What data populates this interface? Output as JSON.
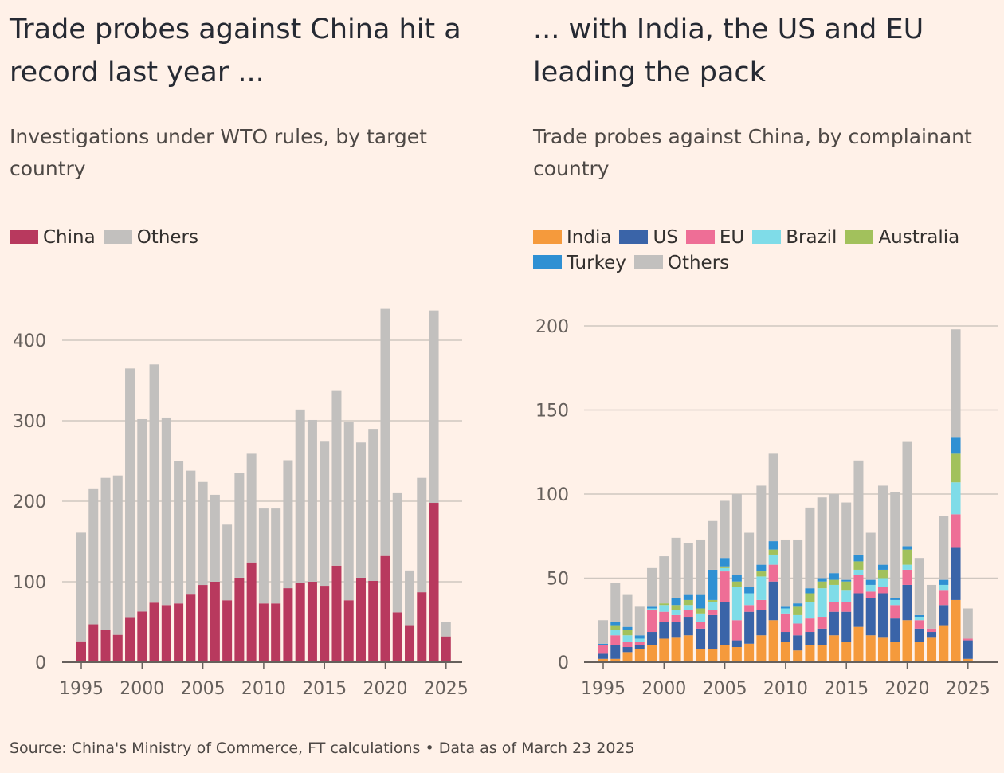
{
  "source": "Source: China's Ministry of Commerce, FT calculations • Data as of March 23 2025",
  "colors": {
    "China": "#B8395E",
    "Others": "#C2C0BE",
    "India": "#F59A3C",
    "US": "#3A64A8",
    "EU": "#EE6E96",
    "Brazil": "#7FDCE8",
    "Australia": "#A2C15C",
    "Turkey": "#2F90D3",
    "gridline": "#CFC7C0",
    "axis": "#66605C"
  },
  "chart_data": [
    {
      "type": "bar",
      "stacked": true,
      "title": "Trade probes against China hit a record last year ...",
      "subtitle": "Investigations under WTO rules, by target country",
      "xlabel": "",
      "ylabel": "",
      "ylim": [
        0,
        400
      ],
      "yticks": [
        0,
        100,
        200,
        300,
        400
      ],
      "xticks": [
        1995,
        2000,
        2005,
        2010,
        2015,
        2020,
        2025
      ],
      "x": [
        1995,
        1996,
        1997,
        1998,
        1999,
        2000,
        2001,
        2002,
        2003,
        2004,
        2005,
        2006,
        2007,
        2008,
        2009,
        2010,
        2011,
        2012,
        2013,
        2014,
        2015,
        2016,
        2017,
        2018,
        2019,
        2020,
        2021,
        2022,
        2023,
        2024,
        2025
      ],
      "legend": "top-left",
      "grid": true,
      "series": [
        {
          "name": "China",
          "values": [
            26,
            47,
            40,
            34,
            56,
            63,
            74,
            71,
            73,
            84,
            96,
            100,
            77,
            105,
            124,
            73,
            73,
            92,
            99,
            100,
            95,
            120,
            77,
            105,
            101,
            132,
            62,
            46,
            87,
            198,
            32
          ]
        },
        {
          "name": "Others",
          "values": [
            135,
            169,
            189,
            198,
            309,
            239,
            296,
            233,
            177,
            154,
            128,
            108,
            94,
            130,
            135,
            118,
            118,
            159,
            215,
            201,
            179,
            217,
            221,
            168,
            189,
            307,
            148,
            68,
            142,
            239,
            18
          ]
        }
      ]
    },
    {
      "type": "bar",
      "stacked": true,
      "title": "... with India, the US and EU leading the pack",
      "subtitle": "Trade probes against China, by complainant country",
      "xlabel": "",
      "ylabel": "",
      "ylim": [
        0,
        200
      ],
      "yticks": [
        0,
        50,
        100,
        150,
        200
      ],
      "xticks": [
        1995,
        2000,
        2005,
        2010,
        2015,
        2020,
        2025
      ],
      "x": [
        1995,
        1996,
        1997,
        1998,
        1999,
        2000,
        2001,
        2002,
        2003,
        2004,
        2005,
        2006,
        2007,
        2008,
        2009,
        2010,
        2011,
        2012,
        2013,
        2014,
        2015,
        2016,
        2017,
        2018,
        2019,
        2020,
        2021,
        2022,
        2023,
        2024,
        2025
      ],
      "legend": "top-left",
      "grid": true,
      "series": [
        {
          "name": "India",
          "values": [
            2,
            2,
            6,
            8,
            10,
            14,
            15,
            16,
            8,
            8,
            10,
            9,
            11,
            16,
            25,
            12,
            7,
            10,
            10,
            16,
            12,
            21,
            16,
            15,
            12,
            25,
            12,
            15,
            22,
            37,
            2
          ]
        },
        {
          "name": "US",
          "values": [
            3,
            8,
            3,
            2,
            8,
            10,
            9,
            11,
            12,
            20,
            26,
            4,
            19,
            15,
            23,
            6,
            9,
            8,
            10,
            14,
            18,
            20,
            22,
            26,
            14,
            21,
            8,
            3,
            12,
            31,
            11
          ]
        },
        {
          "name": "EU",
          "values": [
            5,
            6,
            3,
            2,
            13,
            6,
            4,
            4,
            4,
            3,
            18,
            12,
            4,
            6,
            10,
            11,
            7,
            8,
            7,
            6,
            6,
            11,
            4,
            4,
            8,
            9,
            5,
            2,
            9,
            20,
            1
          ]
        },
        {
          "name": "Brazil",
          "values": [
            0,
            3,
            4,
            2,
            1,
            4,
            3,
            3,
            5,
            5,
            2,
            20,
            7,
            14,
            6,
            3,
            5,
            10,
            17,
            10,
            7,
            3,
            4,
            5,
            3,
            3,
            2,
            0,
            3,
            19,
            0
          ]
        },
        {
          "name": "Australia",
          "values": [
            0,
            3,
            3,
            0,
            0,
            1,
            3,
            3,
            3,
            1,
            1,
            3,
            0,
            3,
            3,
            0,
            5,
            5,
            4,
            3,
            5,
            5,
            0,
            5,
            0,
            9,
            0,
            0,
            0,
            17,
            0
          ]
        },
        {
          "name": "Turkey",
          "values": [
            1,
            2,
            2,
            2,
            1,
            0,
            4,
            3,
            8,
            18,
            5,
            4,
            4,
            4,
            5,
            1,
            2,
            3,
            2,
            4,
            1,
            4,
            3,
            3,
            1,
            2,
            1,
            0,
            3,
            10,
            0
          ]
        },
        {
          "name": "Others",
          "values": [
            14,
            23,
            19,
            17,
            23,
            28,
            36,
            31,
            33,
            29,
            34,
            48,
            32,
            47,
            52,
            40,
            38,
            48,
            48,
            47,
            46,
            56,
            28,
            47,
            63,
            62,
            34,
            26,
            38,
            64,
            18
          ]
        }
      ]
    }
  ]
}
